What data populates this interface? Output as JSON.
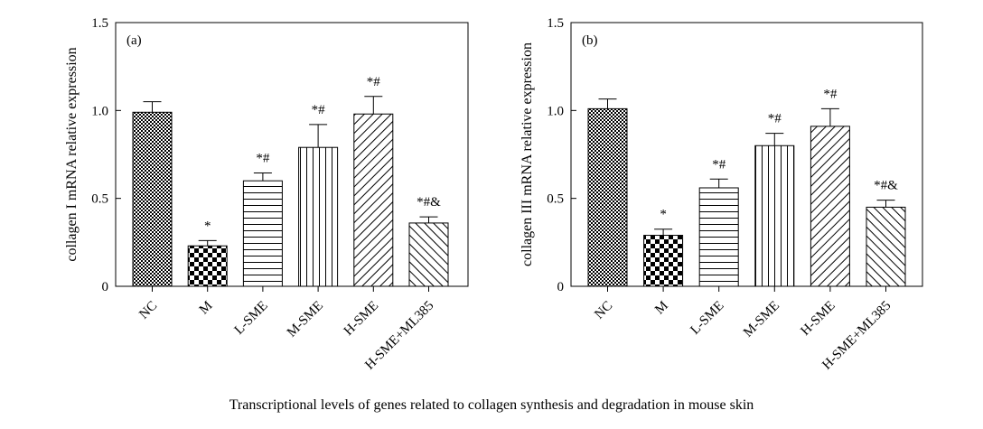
{
  "caption": "Transcriptional levels of genes related to collagen synthesis and degradation in mouse skin",
  "chart_data": [
    {
      "type": "bar",
      "panel_label": "(a)",
      "ylabel": "collagen I mRNA relative expression",
      "ylim": [
        0,
        1.5
      ],
      "yticks": [
        "0",
        "0.5",
        "1.0",
        "1.5"
      ],
      "ytick_values": [
        0,
        0.5,
        1.0,
        1.5
      ],
      "categories": [
        "NC",
        "M",
        "L-SME",
        "M-SME",
        "H-SME",
        "H-SME+ML385"
      ],
      "values": [
        0.99,
        0.23,
        0.6,
        0.79,
        0.98,
        0.36
      ],
      "errors": [
        0.06,
        0.03,
        0.045,
        0.13,
        0.1,
        0.035
      ],
      "annotations": [
        "",
        "*",
        "*#",
        "*#",
        "*#",
        "*#&"
      ],
      "patterns": [
        "checker-fine",
        "checker-coarse",
        "horizontal-lines",
        "vertical-lines",
        "diagonal-up",
        "diagonal-down"
      ]
    },
    {
      "type": "bar",
      "panel_label": "(b)",
      "ylabel": "collagen III mRNA relative expression",
      "ylim": [
        0,
        1.5
      ],
      "yticks": [
        "0",
        "0.5",
        "1.0",
        "1.5"
      ],
      "ytick_values": [
        0,
        0.5,
        1.0,
        1.5
      ],
      "categories": [
        "NC",
        "M",
        "L-SME",
        "M-SME",
        "H-SME",
        "H-SME+ML385"
      ],
      "values": [
        1.01,
        0.29,
        0.56,
        0.8,
        0.91,
        0.45
      ],
      "errors": [
        0.055,
        0.035,
        0.05,
        0.07,
        0.1,
        0.04
      ],
      "annotations": [
        "",
        "*",
        "*#",
        "*#",
        "*#",
        "*#&"
      ],
      "patterns": [
        "checker-fine",
        "checker-coarse",
        "horizontal-lines",
        "vertical-lines",
        "diagonal-up",
        "diagonal-down"
      ]
    }
  ]
}
